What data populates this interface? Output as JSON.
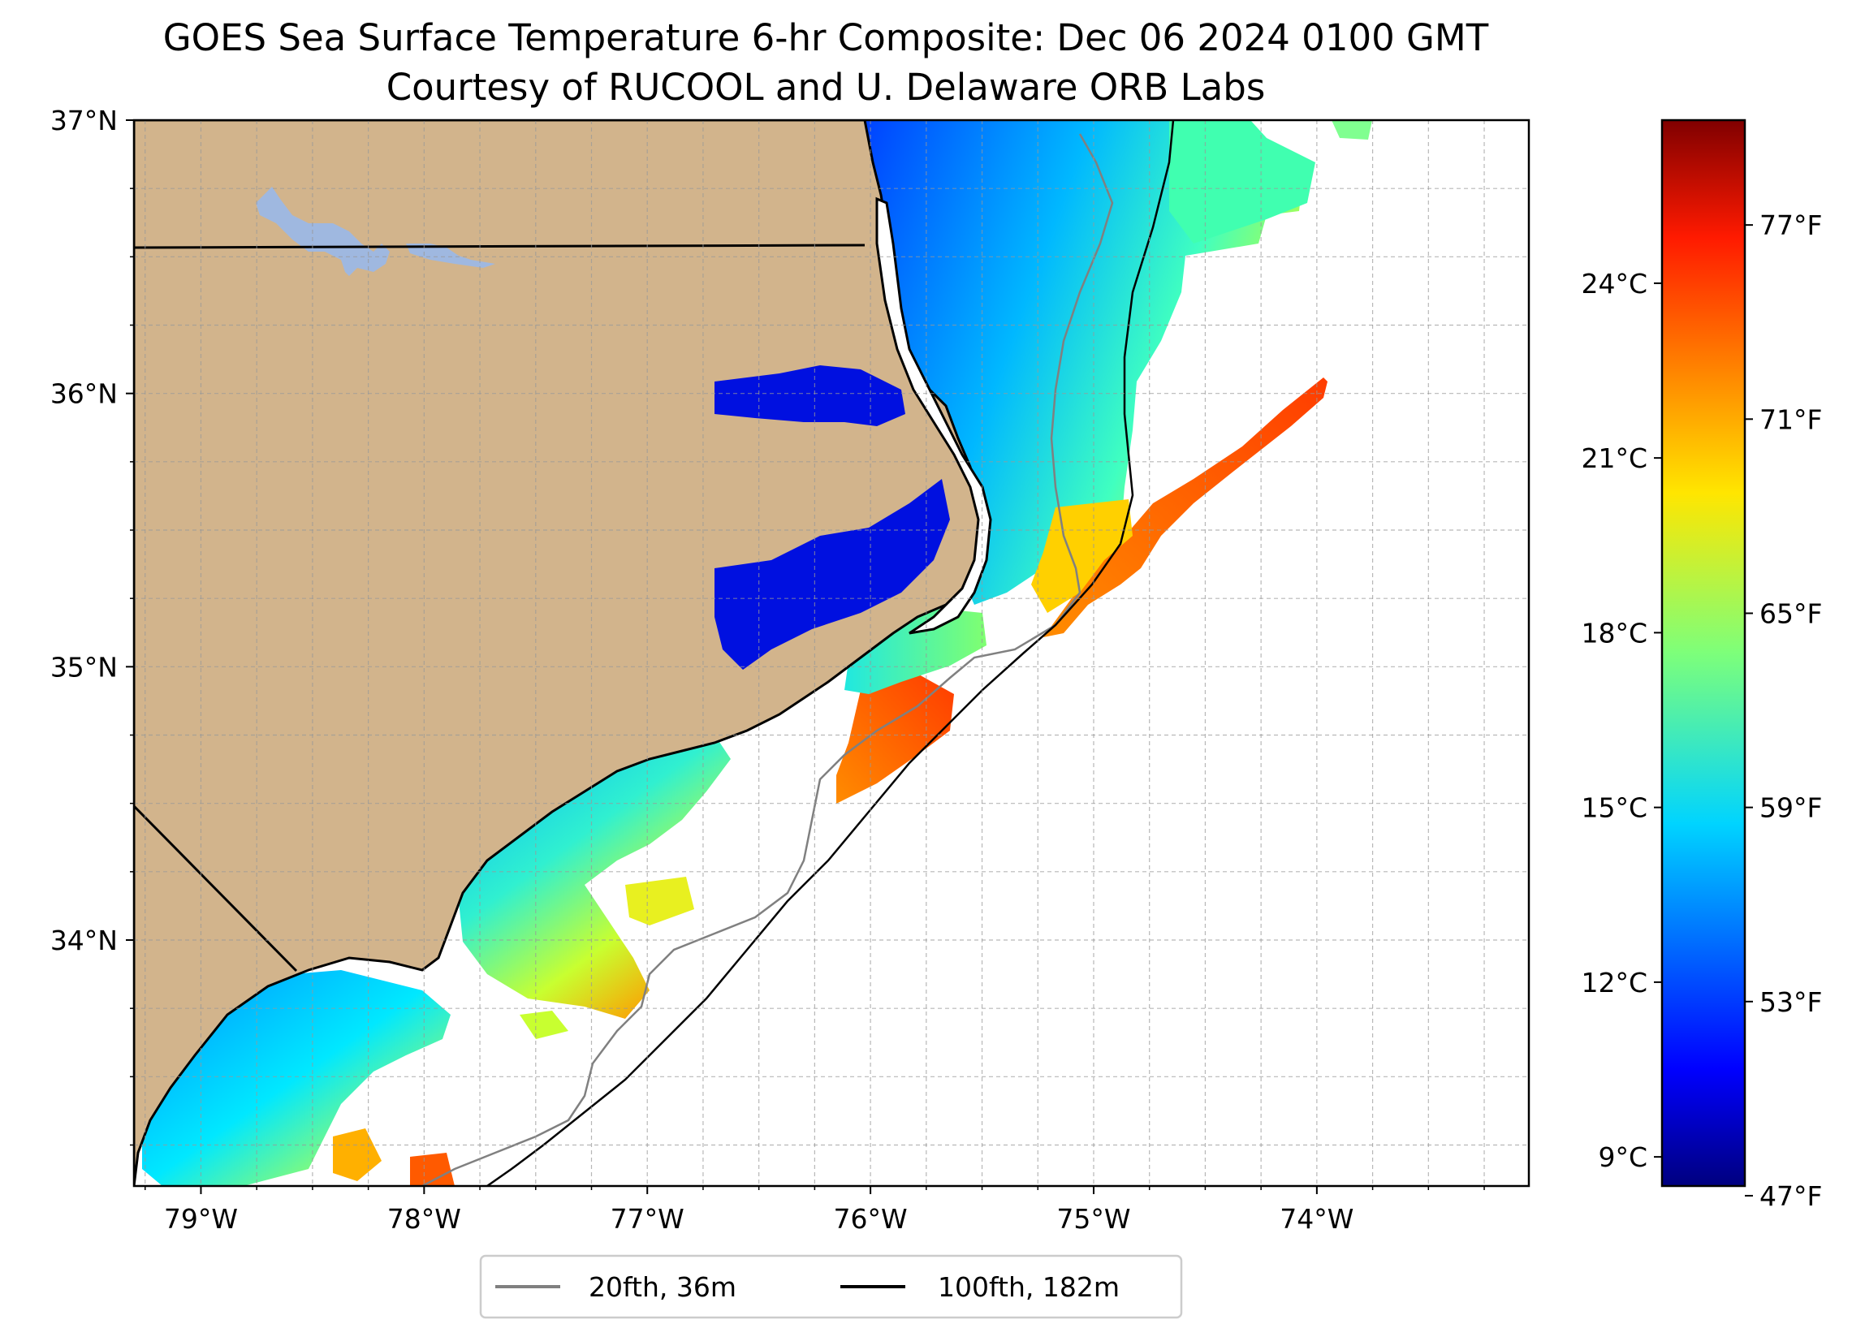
{
  "title": {
    "line1": "GOES Sea Surface Temperature 6-hr Composite: Dec 06 2024 0100 GMT",
    "line2": "Courtesy of RUCOOL and U. Delaware ORB Labs"
  },
  "map": {
    "lon_range": [
      -79.3,
      -73.05
    ],
    "lat_range": [
      33.1,
      37.0
    ],
    "gridlines": true,
    "lon_ticks": [
      {
        "value": -79,
        "label": "79°W"
      },
      {
        "value": -78,
        "label": "78°W"
      },
      {
        "value": -77,
        "label": "77°W"
      },
      {
        "value": -76,
        "label": "76°W"
      },
      {
        "value": -75,
        "label": "75°W"
      },
      {
        "value": -74,
        "label": "74°W"
      }
    ],
    "lat_ticks": [
      {
        "value": 37,
        "label": "37°N"
      },
      {
        "value": 36,
        "label": "36°N"
      },
      {
        "value": 35,
        "label": "35°N"
      },
      {
        "value": 34,
        "label": "34°N"
      }
    ]
  },
  "colorbar": {
    "range_c": [
      8.5,
      26.8
    ],
    "celsius_ticks": [
      {
        "value": 9,
        "label": "9°C"
      },
      {
        "value": 12,
        "label": "12°C"
      },
      {
        "value": 15,
        "label": "15°C"
      },
      {
        "value": 18,
        "label": "18°C"
      },
      {
        "value": 21,
        "label": "21°C"
      },
      {
        "value": 24,
        "label": "24°C"
      }
    ],
    "fahrenheit_ticks": [
      {
        "value": 47,
        "label": "47°F"
      },
      {
        "value": 53,
        "label": "53°F"
      },
      {
        "value": 59,
        "label": "59°F"
      },
      {
        "value": 65,
        "label": "65°F"
      },
      {
        "value": 71,
        "label": "71°F"
      },
      {
        "value": 77,
        "label": "77°F"
      }
    ]
  },
  "legend": {
    "location": "below-center",
    "items": [
      {
        "label": "20fth, 36m",
        "color": "#808080"
      },
      {
        "label": "100fth, 182m",
        "color": "#000000"
      }
    ]
  },
  "colors": {
    "land": "#d2b48c",
    "lake": "#9fb8e0",
    "isobath_20": "#808080",
    "isobath_100": "#000000"
  }
}
